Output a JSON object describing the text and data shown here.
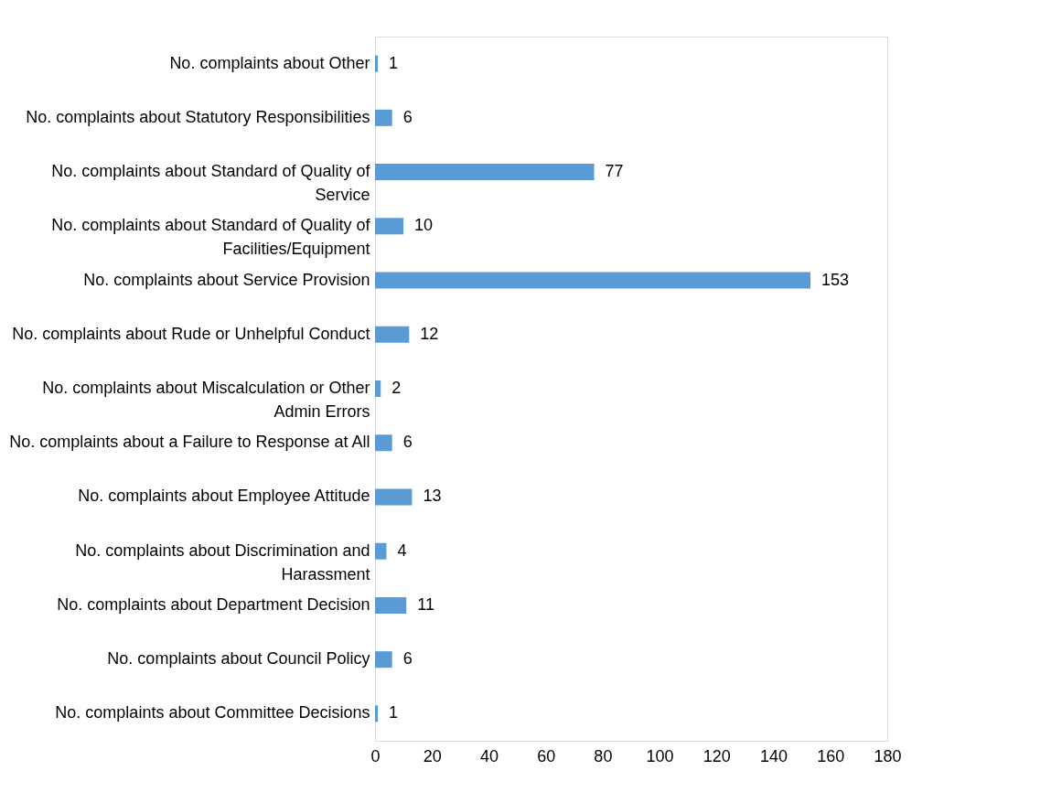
{
  "chart_data": {
    "type": "bar",
    "orientation": "horizontal",
    "categories": [
      "No. complaints about Other",
      "No. complaints about Statutory Responsibilities",
      "No. complaints about Standard of Quality of Service",
      "No. complaints about Standard of Quality of Facilities/Equipment",
      "No. complaints about Service Provision",
      "No. complaints about Rude or Unhelpful Conduct",
      "No. complaints about Miscalculation or Other Admin Errors",
      "No. complaints about a Failure to Response at All",
      "No. complaints about Employee Attitude",
      "No. complaints about Discrimination and Harassment",
      "No. complaints about Department Decision",
      "No. complaints about Council Policy",
      "No. complaints about Committee Decisions"
    ],
    "values": [
      1,
      6,
      77,
      10,
      153,
      12,
      2,
      6,
      13,
      4,
      11,
      6,
      1
    ],
    "color": "#5b9bd5",
    "xlim": [
      0,
      180
    ],
    "xticks": [
      0,
      20,
      40,
      60,
      80,
      100,
      120,
      140,
      160,
      180
    ],
    "data_labels": true,
    "grid": false
  }
}
